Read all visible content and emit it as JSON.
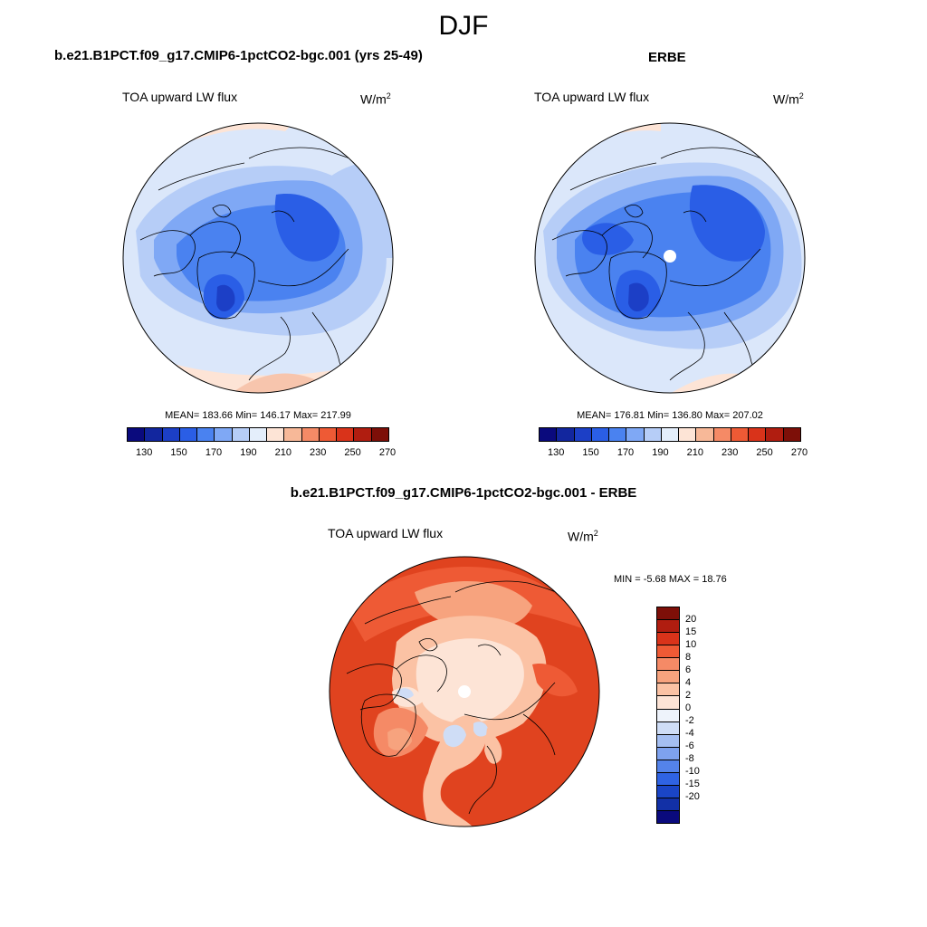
{
  "season": "DJF",
  "panels": {
    "model": {
      "title": "b.e21.B1PCT.f09_g17.CMIP6-1pctCO2-bgc.001 (yrs 25-49)",
      "variable": "TOA upward LW flux",
      "units": "W/m",
      "units_sup": "2",
      "stats": "MEAN= 183.66  Min= 146.17  Max= 217.99"
    },
    "obs": {
      "title": "ERBE",
      "variable": "TOA upward LW flux",
      "units": "W/m",
      "units_sup": "2",
      "stats": "MEAN= 176.81  Min= 136.80  Max= 207.02"
    },
    "diff": {
      "title": "b.e21.B1PCT.f09_g17.CMIP6-1pctCO2-bgc.001 - ERBE",
      "variable": "TOA upward LW flux",
      "units": "W/m",
      "units_sup": "2",
      "stats": "MIN =  -5.68 MAX =  18.76"
    }
  },
  "colorbar_main": {
    "colors": [
      "#0a0a7d",
      "#12269e",
      "#1c3fc6",
      "#2a5ee6",
      "#4a82f0",
      "#7fa8f5",
      "#b6cdf7",
      "#e4eefb",
      "#fde4d6",
      "#f7b898",
      "#f58a66",
      "#ee5a35",
      "#d9331a",
      "#b01d10",
      "#7d0f08"
    ],
    "tick_labels": [
      "130",
      "150",
      "170",
      "190",
      "210",
      "230",
      "250",
      "270"
    ]
  },
  "colorbar_diff": {
    "colors": [
      "#7d0f08",
      "#b01d10",
      "#d9331a",
      "#ee5a35",
      "#f58a66",
      "#f7a37e",
      "#fbc2a4",
      "#fde4d6",
      "#eef3fb",
      "#cfddf6",
      "#a5bff2",
      "#7ea2ef",
      "#5483ea",
      "#2f63e3",
      "#1a45c6",
      "#1230a6",
      "#0a0a7d"
    ],
    "tick_labels": [
      "20",
      "15",
      "10",
      "8",
      "6",
      "4",
      "2",
      "0",
      "-2",
      "-4",
      "-6",
      "-8",
      "-10",
      "-15",
      "-20"
    ]
  }
}
